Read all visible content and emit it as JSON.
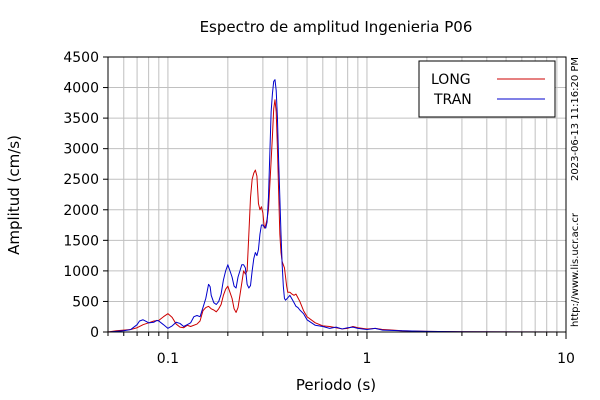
{
  "chart_data": {
    "type": "line",
    "title": "Espectro de amplitud Ingenieria P06",
    "xlabel": "Periodo (s)",
    "ylabel": "Amplitud (cm/s)",
    "xscale": "log",
    "xlim": [
      0.05,
      10
    ],
    "ylim": [
      0,
      4500
    ],
    "xticks": [
      {
        "value": 0.1,
        "label": "0.1"
      },
      {
        "value": 1,
        "label": "1"
      },
      {
        "value": 10,
        "label": "10"
      }
    ],
    "yticks": [
      {
        "value": 0,
        "label": "0"
      },
      {
        "value": 500,
        "label": "500"
      },
      {
        "value": 1000,
        "label": "1000"
      },
      {
        "value": 1500,
        "label": "1500"
      },
      {
        "value": 2000,
        "label": "2000"
      },
      {
        "value": 2500,
        "label": "2500"
      },
      {
        "value": 3000,
        "label": "3000"
      },
      {
        "value": 3500,
        "label": "3500"
      },
      {
        "value": 4000,
        "label": "4000"
      },
      {
        "value": 4500,
        "label": "4500"
      }
    ],
    "grid": true,
    "legend_position": "top-right",
    "series": [
      {
        "name": "LONG",
        "color": "#cc0000",
        "points": [
          [
            0.05,
            0
          ],
          [
            0.055,
            20
          ],
          [
            0.06,
            30
          ],
          [
            0.065,
            40
          ],
          [
            0.07,
            70
          ],
          [
            0.075,
            120
          ],
          [
            0.08,
            150
          ],
          [
            0.085,
            180
          ],
          [
            0.09,
            190
          ],
          [
            0.095,
            250
          ],
          [
            0.1,
            300
          ],
          [
            0.105,
            240
          ],
          [
            0.11,
            130
          ],
          [
            0.115,
            80
          ],
          [
            0.12,
            70
          ],
          [
            0.125,
            110
          ],
          [
            0.13,
            90
          ],
          [
            0.14,
            130
          ],
          [
            0.145,
            180
          ],
          [
            0.15,
            350
          ],
          [
            0.155,
            400
          ],
          [
            0.16,
            420
          ],
          [
            0.165,
            380
          ],
          [
            0.17,
            360
          ],
          [
            0.175,
            330
          ],
          [
            0.18,
            380
          ],
          [
            0.185,
            450
          ],
          [
            0.19,
            600
          ],
          [
            0.195,
            700
          ],
          [
            0.2,
            750
          ],
          [
            0.205,
            650
          ],
          [
            0.21,
            550
          ],
          [
            0.215,
            380
          ],
          [
            0.22,
            320
          ],
          [
            0.225,
            400
          ],
          [
            0.23,
            600
          ],
          [
            0.235,
            800
          ],
          [
            0.24,
            1000
          ],
          [
            0.245,
            950
          ],
          [
            0.25,
            1000
          ],
          [
            0.255,
            1600
          ],
          [
            0.26,
            2200
          ],
          [
            0.265,
            2500
          ],
          [
            0.27,
            2600
          ],
          [
            0.275,
            2650
          ],
          [
            0.28,
            2550
          ],
          [
            0.285,
            2100
          ],
          [
            0.29,
            2000
          ],
          [
            0.295,
            2050
          ],
          [
            0.3,
            1950
          ],
          [
            0.305,
            1700
          ],
          [
            0.31,
            1750
          ],
          [
            0.315,
            1850
          ],
          [
            0.32,
            2000
          ],
          [
            0.325,
            2400
          ],
          [
            0.33,
            2800
          ],
          [
            0.335,
            3200
          ],
          [
            0.34,
            3650
          ],
          [
            0.345,
            3800
          ],
          [
            0.35,
            3600
          ],
          [
            0.355,
            3000
          ],
          [
            0.36,
            2300
          ],
          [
            0.365,
            1600
          ],
          [
            0.37,
            1300
          ],
          [
            0.375,
            1150
          ],
          [
            0.38,
            1100
          ],
          [
            0.385,
            1050
          ],
          [
            0.39,
            900
          ],
          [
            0.395,
            750
          ],
          [
            0.4,
            650
          ],
          [
            0.41,
            650
          ],
          [
            0.42,
            620
          ],
          [
            0.43,
            600
          ],
          [
            0.44,
            620
          ],
          [
            0.45,
            560
          ],
          [
            0.46,
            500
          ],
          [
            0.48,
            350
          ],
          [
            0.5,
            250
          ],
          [
            0.55,
            150
          ],
          [
            0.6,
            100
          ],
          [
            0.65,
            90
          ],
          [
            0.7,
            70
          ],
          [
            0.75,
            50
          ],
          [
            0.8,
            60
          ],
          [
            0.85,
            90
          ],
          [
            0.9,
            70
          ],
          [
            1,
            50
          ],
          [
            1.1,
            60
          ],
          [
            1.2,
            40
          ],
          [
            1.3,
            35
          ],
          [
            1.5,
            20
          ],
          [
            2,
            10
          ],
          [
            3,
            5
          ],
          [
            5,
            2
          ],
          [
            10,
            0
          ]
        ]
      },
      {
        "name": "TRAN",
        "color": "#0000cc",
        "points": [
          [
            0.05,
            0
          ],
          [
            0.055,
            10
          ],
          [
            0.06,
            20
          ],
          [
            0.065,
            40
          ],
          [
            0.07,
            120
          ],
          [
            0.072,
            180
          ],
          [
            0.075,
            200
          ],
          [
            0.078,
            170
          ],
          [
            0.08,
            150
          ],
          [
            0.085,
            160
          ],
          [
            0.088,
            190
          ],
          [
            0.09,
            180
          ],
          [
            0.095,
            120
          ],
          [
            0.1,
            60
          ],
          [
            0.105,
            100
          ],
          [
            0.11,
            160
          ],
          [
            0.115,
            140
          ],
          [
            0.12,
            90
          ],
          [
            0.125,
            120
          ],
          [
            0.13,
            150
          ],
          [
            0.135,
            250
          ],
          [
            0.14,
            270
          ],
          [
            0.145,
            250
          ],
          [
            0.15,
            400
          ],
          [
            0.155,
            550
          ],
          [
            0.16,
            780
          ],
          [
            0.163,
            740
          ],
          [
            0.165,
            600
          ],
          [
            0.17,
            480
          ],
          [
            0.175,
            450
          ],
          [
            0.18,
            500
          ],
          [
            0.185,
            620
          ],
          [
            0.19,
            850
          ],
          [
            0.195,
            1000
          ],
          [
            0.2,
            1100
          ],
          [
            0.205,
            1000
          ],
          [
            0.21,
            900
          ],
          [
            0.215,
            750
          ],
          [
            0.22,
            720
          ],
          [
            0.225,
            900
          ],
          [
            0.23,
            1000
          ],
          [
            0.235,
            1100
          ],
          [
            0.24,
            1100
          ],
          [
            0.245,
            1050
          ],
          [
            0.25,
            780
          ],
          [
            0.255,
            720
          ],
          [
            0.26,
            760
          ],
          [
            0.265,
            1000
          ],
          [
            0.27,
            1200
          ],
          [
            0.275,
            1300
          ],
          [
            0.28,
            1250
          ],
          [
            0.285,
            1350
          ],
          [
            0.29,
            1600
          ],
          [
            0.295,
            1750
          ],
          [
            0.3,
            1750
          ],
          [
            0.305,
            1720
          ],
          [
            0.31,
            1700
          ],
          [
            0.315,
            1800
          ],
          [
            0.32,
            2200
          ],
          [
            0.325,
            2900
          ],
          [
            0.33,
            3600
          ],
          [
            0.335,
            3900
          ],
          [
            0.34,
            4100
          ],
          [
            0.345,
            4130
          ],
          [
            0.35,
            3950
          ],
          [
            0.355,
            3500
          ],
          [
            0.36,
            2800
          ],
          [
            0.365,
            2200
          ],
          [
            0.37,
            1600
          ],
          [
            0.375,
            1100
          ],
          [
            0.38,
            750
          ],
          [
            0.385,
            550
          ],
          [
            0.39,
            520
          ],
          [
            0.4,
            560
          ],
          [
            0.41,
            600
          ],
          [
            0.42,
            540
          ],
          [
            0.43,
            480
          ],
          [
            0.44,
            420
          ],
          [
            0.45,
            400
          ],
          [
            0.46,
            360
          ],
          [
            0.48,
            300
          ],
          [
            0.5,
            200
          ],
          [
            0.55,
            110
          ],
          [
            0.6,
            90
          ],
          [
            0.65,
            60
          ],
          [
            0.7,
            80
          ],
          [
            0.75,
            50
          ],
          [
            0.8,
            70
          ],
          [
            0.85,
            80
          ],
          [
            0.9,
            60
          ],
          [
            1,
            40
          ],
          [
            1.1,
            60
          ],
          [
            1.2,
            30
          ],
          [
            1.5,
            20
          ],
          [
            2,
            10
          ],
          [
            3,
            5
          ],
          [
            5,
            2
          ],
          [
            10,
            0
          ]
        ]
      }
    ],
    "annotations": [
      {
        "text": "2023-06-13 11:16:20 PM"
      },
      {
        "text": "http://www.lis.ucr.ac.cr"
      }
    ]
  }
}
